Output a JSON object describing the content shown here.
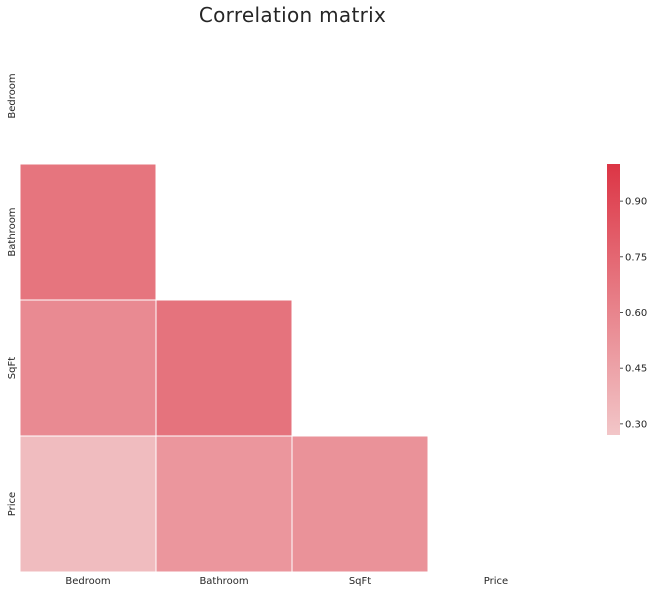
{
  "chart_data": {
    "type": "heatmap",
    "title": "Correlation matrix",
    "variables": [
      "Bedroom",
      "Bathroom",
      "SqFt",
      "Price"
    ],
    "masked": "upper triangle and diagonal",
    "cells": [
      {
        "row": "Bathroom",
        "col": "Bedroom",
        "value": 0.68
      },
      {
        "row": "SqFt",
        "col": "Bedroom",
        "value": 0.57
      },
      {
        "row": "SqFt",
        "col": "Bathroom",
        "value": 0.69
      },
      {
        "row": "Price",
        "col": "Bedroom",
        "value": 0.32
      },
      {
        "row": "Price",
        "col": "Bathroom",
        "value": 0.51
      },
      {
        "row": "Price",
        "col": "SqFt",
        "value": 0.53
      }
    ],
    "colorbar": {
      "vmin": 0.27,
      "vmax": 1.0,
      "ticks": [
        0.3,
        0.45,
        0.6,
        0.75,
        0.9
      ],
      "tick_labels": [
        "0.30",
        "0.45",
        "0.60",
        "0.75",
        "0.90"
      ],
      "color_low": "#f2c6c8",
      "color_high": "#dc3545"
    },
    "cell_edge_color": "#ffffff",
    "grid": false
  }
}
